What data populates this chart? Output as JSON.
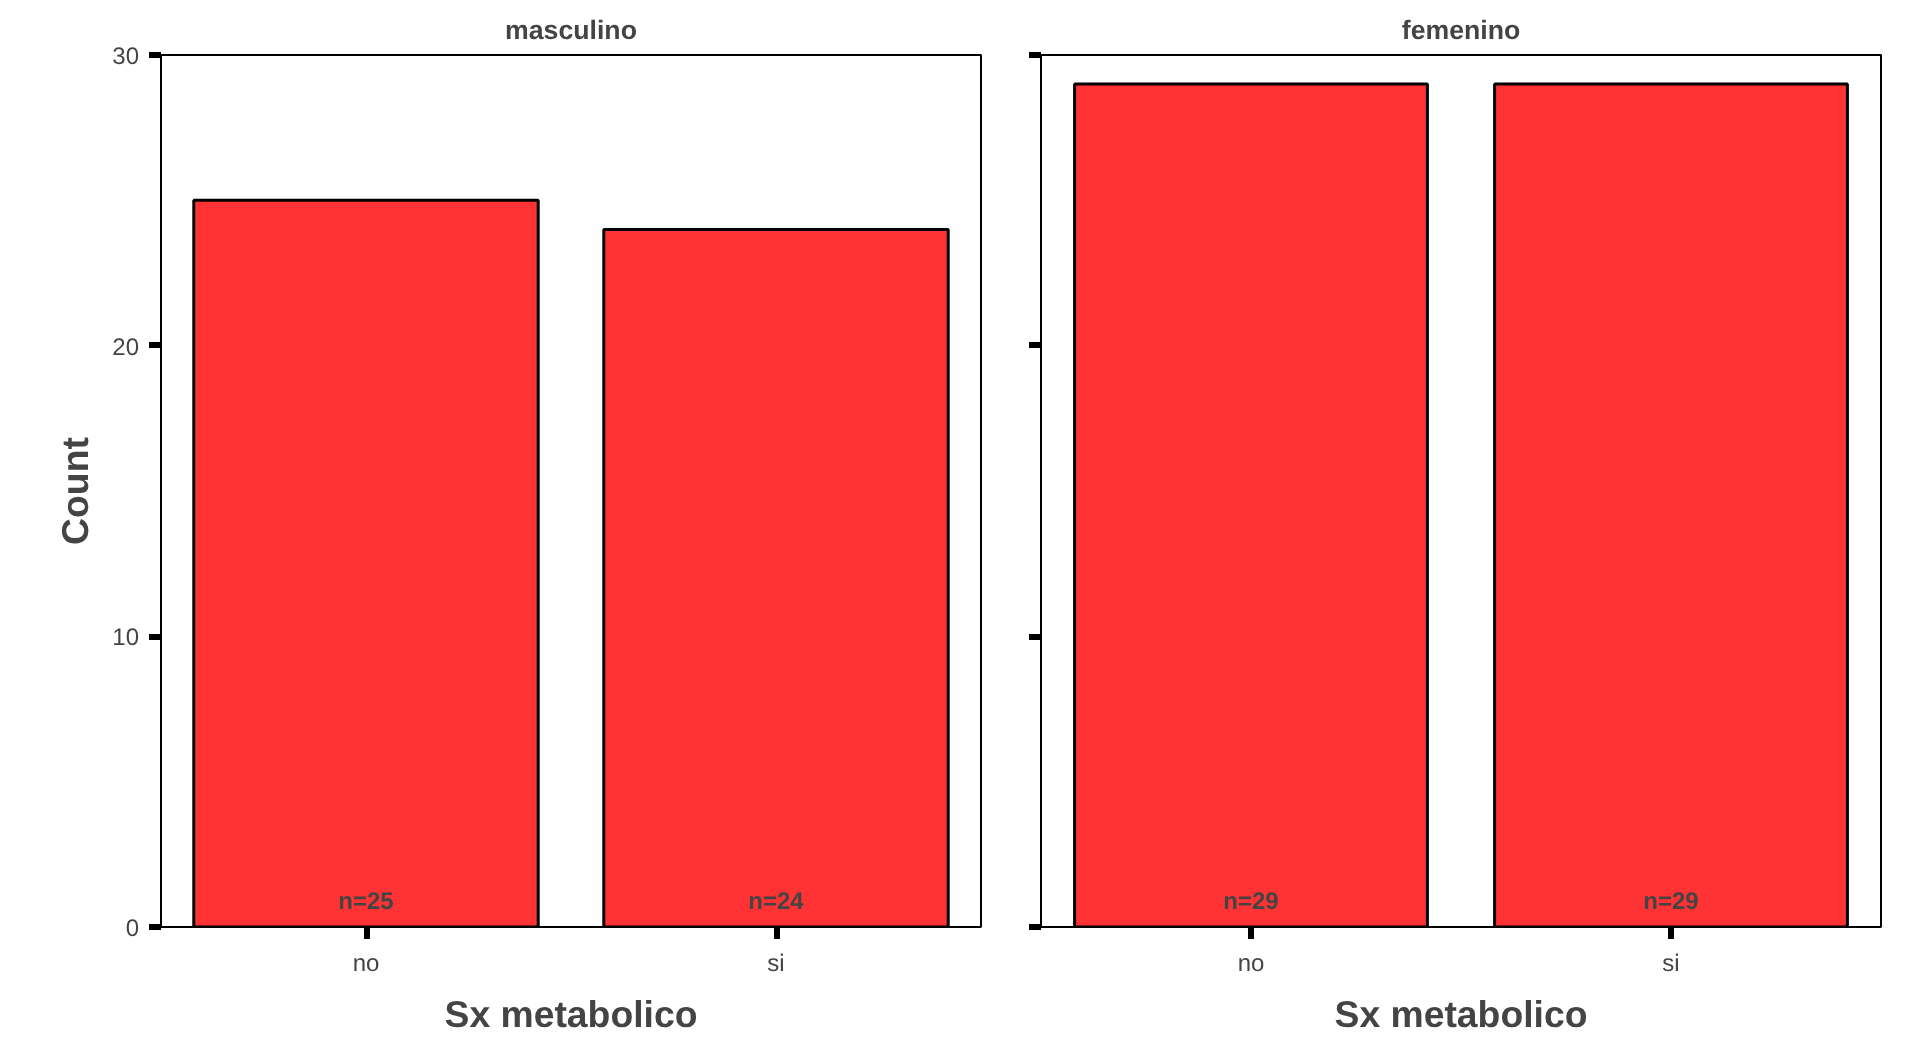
{
  "chart_data": [
    {
      "type": "bar",
      "title": "masculino",
      "xlabel": "Sx metabolico",
      "ylabel": "Count",
      "categories": [
        "no",
        "si"
      ],
      "values": [
        25,
        24
      ],
      "color": "#ff3333",
      "value_labels": [
        "n=25",
        "n=24"
      ],
      "ylim": [
        0,
        30
      ],
      "yticks": [
        0,
        10,
        20,
        30
      ],
      "grid": false
    },
    {
      "type": "bar",
      "title": "femenino",
      "xlabel": "Sx metabolico",
      "categories": [
        "no",
        "si"
      ],
      "values": [
        29,
        29
      ],
      "color": "#ff3333",
      "value_labels": [
        "n=29",
        "n=29"
      ],
      "ylim": [
        0,
        30
      ],
      "yticks": [
        0,
        10,
        20,
        30
      ],
      "grid": false,
      "tick_labels": "x"
    }
  ]
}
